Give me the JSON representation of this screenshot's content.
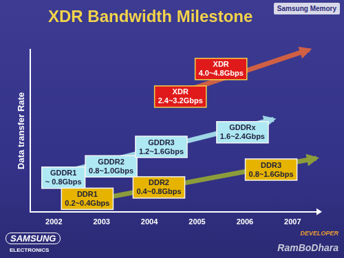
{
  "chart_data": {
    "type": "line",
    "title": "XDR Bandwidth Milestone",
    "y_label": "Data transfer Rate",
    "xlim": [
      2001.5,
      2007.5
    ],
    "xticks": [
      2002,
      2003,
      2004,
      2005,
      2006,
      2007
    ],
    "ylim": [
      0,
      10
    ],
    "tick_labels": "x",
    "grid": false,
    "legend": false,
    "series": [
      {
        "color": "#9fd6e6",
        "x": [
          2002.0,
          2006.6
        ],
        "values": [
          2.3,
          5.7
        ],
        "line_style": "arrow"
      },
      {
        "color": "#8c9c3c",
        "x": [
          2002.6,
          2007.5
        ],
        "values": [
          0.6,
          3.3
        ],
        "line_style": "arrow"
      },
      {
        "color": "#cf6044",
        "x": [
          2004.2,
          2007.35
        ],
        "values": [
          6.9,
          10.0
        ],
        "line_style": "arrow"
      }
    ],
    "annotations": [
      {
        "lines": [
          "GDDR1",
          "~ 0.8Gbps"
        ],
        "x": 2002.2,
        "y": 2.1,
        "color": "#aee8f2"
      },
      {
        "lines": [
          "DDR1",
          "0.2~0.4Gbps"
        ],
        "x": 2002.7,
        "y": 0.8,
        "color": "#e6b400"
      },
      {
        "lines": [
          "GDDR2",
          "0.8~1.0Gbps"
        ],
        "x": 2003.2,
        "y": 2.8,
        "color": "#aee8f2"
      },
      {
        "lines": [
          "GDDR3",
          "1.2~1.6Gbps"
        ],
        "x": 2004.25,
        "y": 4.0,
        "color": "#aee8f2"
      },
      {
        "lines": [
          "DDR2",
          "0.4~0.8Gbps"
        ],
        "x": 2004.2,
        "y": 1.5,
        "color": "#e6b400"
      },
      {
        "lines": [
          "XDR",
          "2.4~3.2Gbps"
        ],
        "x": 2004.65,
        "y": 7.1,
        "color": "#e01a1a"
      },
      {
        "lines": [
          "XDR",
          "4.0~4.8Gbps"
        ],
        "x": 2005.5,
        "y": 8.8,
        "color": "#e01a1a"
      },
      {
        "lines": [
          "GDDRx",
          "1.6~2.4Gbps"
        ],
        "x": 2005.95,
        "y": 4.9,
        "color": "#aee8f2"
      },
      {
        "lines": [
          "DDR3",
          "0.8~1.6Gbps"
        ],
        "x": 2006.55,
        "y": 2.6,
        "color": "#e6b400"
      }
    ]
  },
  "slide": {
    "logo": "Samsung Memory",
    "brand": "SAMSUNG",
    "brand_sub": "ELECTRONICS",
    "forum": "DEVELOPER",
    "watermark": "RamBoDhara"
  }
}
